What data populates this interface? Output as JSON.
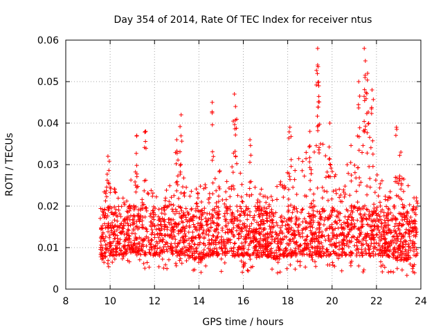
{
  "chart_data": {
    "type": "scatter",
    "title": "Day 354 of 2014, Rate Of TEC Index for receiver ntus",
    "xlabel": "GPS time / hours",
    "ylabel": "ROTI / TECUs",
    "xlim": [
      8,
      24
    ],
    "ylim": [
      0,
      0.06
    ],
    "x_ticks": [
      8,
      10,
      12,
      14,
      16,
      18,
      20,
      22,
      24
    ],
    "x_tick_labels": [
      "8",
      "10",
      "12",
      "14",
      "16",
      "18",
      "20",
      "22",
      "24"
    ],
    "y_ticks": [
      0,
      0.01,
      0.02,
      0.03,
      0.04,
      0.05,
      0.06
    ],
    "y_tick_labels": [
      "0",
      "0.01",
      "0.02",
      "0.03",
      "0.04",
      "0.05",
      "0.06"
    ],
    "grid": true,
    "marker": "+",
    "series": [
      {
        "name": "ROTI",
        "color": "#ff0000",
        "envelope": {
          "x": [
            9.55,
            10.0,
            10.5,
            11.0,
            11.5,
            12.0,
            12.5,
            13.0,
            13.5,
            14.0,
            14.5,
            15.0,
            15.5,
            16.0,
            16.5,
            17.0,
            17.5,
            18.0,
            18.5,
            19.0,
            19.5,
            20.0,
            20.5,
            21.0,
            21.5,
            22.0,
            22.5,
            23.0,
            23.5,
            23.85
          ],
          "y_low": [
            0.003,
            0.004,
            0.004,
            0.005,
            0.004,
            0.004,
            0.005,
            0.004,
            0.004,
            0.003,
            0.004,
            0.004,
            0.004,
            0.004,
            0.004,
            0.004,
            0.003,
            0.004,
            0.004,
            0.004,
            0.004,
            0.004,
            0.004,
            0.004,
            0.004,
            0.004,
            0.004,
            0.003,
            0.003,
            0.004
          ],
          "y_typical_high": [
            0.022,
            0.026,
            0.022,
            0.028,
            0.03,
            0.022,
            0.024,
            0.032,
            0.024,
            0.026,
            0.025,
            0.03,
            0.032,
            0.027,
            0.025,
            0.024,
            0.025,
            0.03,
            0.032,
            0.035,
            0.036,
            0.03,
            0.026,
            0.04,
            0.045,
            0.028,
            0.025,
            0.03,
            0.025,
            0.022
          ]
        },
        "peaks": [
          {
            "x": 9.9,
            "y": 0.032
          },
          {
            "x": 11.2,
            "y": 0.037
          },
          {
            "x": 11.6,
            "y": 0.038
          },
          {
            "x": 13.2,
            "y": 0.042
          },
          {
            "x": 13.0,
            "y": 0.036
          },
          {
            "x": 14.6,
            "y": 0.045
          },
          {
            "x": 15.6,
            "y": 0.047
          },
          {
            "x": 15.65,
            "y": 0.044
          },
          {
            "x": 16.3,
            "y": 0.036
          },
          {
            "x": 18.1,
            "y": 0.039
          },
          {
            "x": 19.0,
            "y": 0.038
          },
          {
            "x": 19.35,
            "y": 0.058
          },
          {
            "x": 19.35,
            "y": 0.054
          },
          {
            "x": 19.4,
            "y": 0.049
          },
          {
            "x": 19.9,
            "y": 0.04
          },
          {
            "x": 21.2,
            "y": 0.05
          },
          {
            "x": 21.45,
            "y": 0.058
          },
          {
            "x": 21.5,
            "y": 0.055
          },
          {
            "x": 21.6,
            "y": 0.052
          },
          {
            "x": 21.8,
            "y": 0.048
          },
          {
            "x": 22.9,
            "y": 0.039
          },
          {
            "x": 23.1,
            "y": 0.033
          }
        ]
      }
    ]
  }
}
